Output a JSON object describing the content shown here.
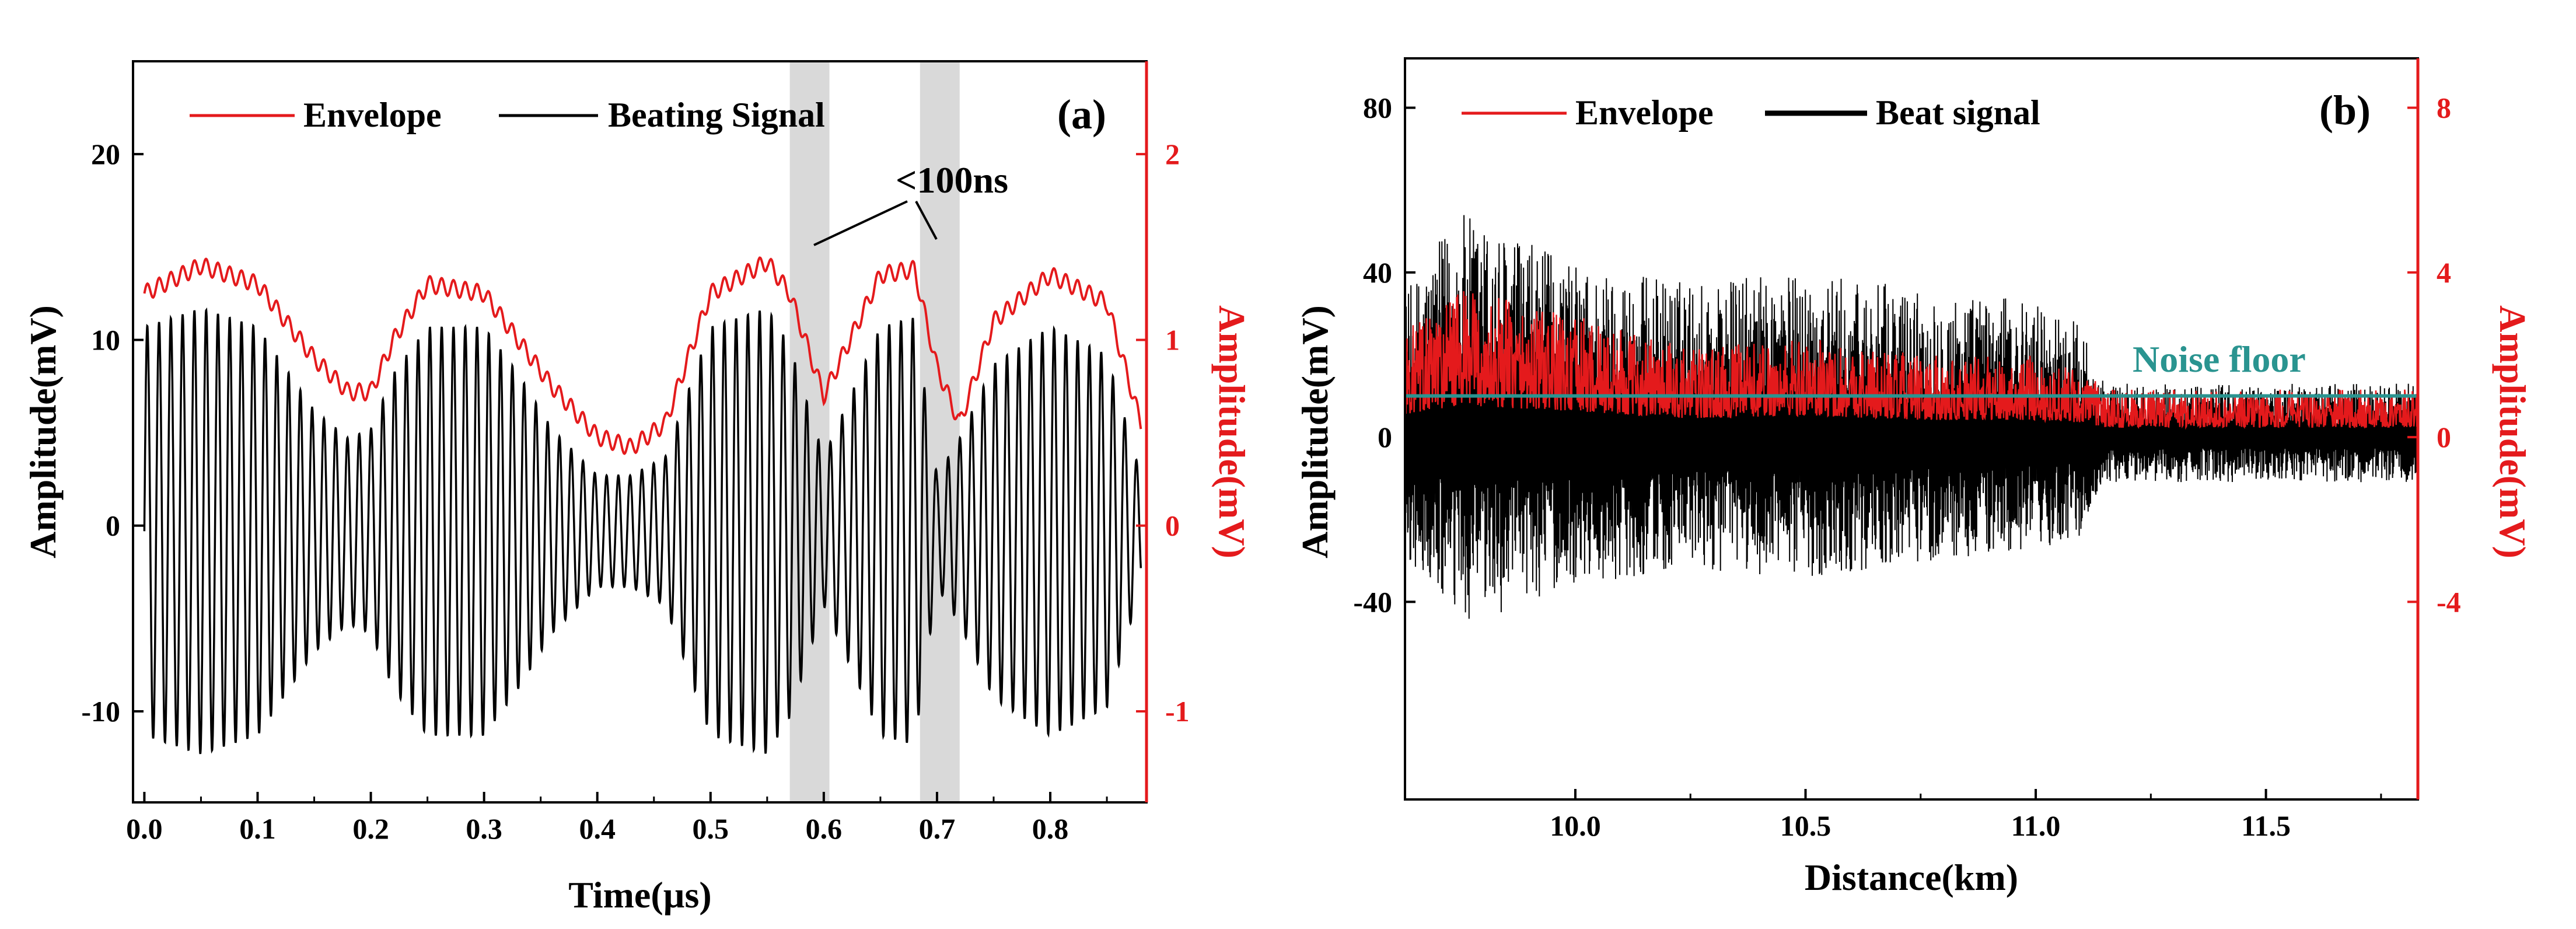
{
  "figure": {
    "panels": [
      "(a)",
      "(b)"
    ]
  },
  "chart_data": [
    {
      "type": "line",
      "panel_label": "(a)",
      "title": "",
      "xlabel": "Time(µs)",
      "ylabel_left": "Amplitude(mV)",
      "ylabel_right": "Amplitude(mV)",
      "xlim": [
        -0.01,
        0.885
      ],
      "ylim_left": [
        -14.9,
        25
      ],
      "ylim_right": [
        -1.49,
        2.5
      ],
      "x_ticks": [
        0.0,
        0.1,
        0.2,
        0.3,
        0.4,
        0.5,
        0.6,
        0.7,
        0.8
      ],
      "x_tick_labels": [
        "0.0",
        "0.1",
        "0.2",
        "0.3",
        "0.4",
        "0.5",
        "0.6",
        "0.7",
        "0.8"
      ],
      "y_left_ticks": [
        -10,
        0,
        10,
        20
      ],
      "y_left_tick_labels": [
        "-10",
        "0",
        "10",
        "20"
      ],
      "y_right_ticks": [
        -1,
        0,
        1,
        2
      ],
      "y_right_tick_labels": [
        "-1",
        "0",
        "1",
        "2"
      ],
      "legend": [
        {
          "name": "Envelope",
          "color": "#e41a1c"
        },
        {
          "name": "Beating Signal",
          "color": "#000000"
        }
      ],
      "legend_position": "top-left",
      "series": [
        {
          "name": "Envelope",
          "axis": "right",
          "color": "#e41a1c",
          "x": [
            0.0,
            0.05,
            0.1,
            0.15,
            0.18,
            0.2,
            0.22,
            0.25,
            0.3,
            0.33,
            0.36,
            0.4,
            0.43,
            0.46,
            0.5,
            0.55,
            0.57,
            0.6,
            0.65,
            0.68,
            0.7,
            0.72,
            0.75,
            0.8,
            0.85,
            0.88
          ],
          "values": [
            1.25,
            1.4,
            1.3,
            0.9,
            0.72,
            0.72,
            1.0,
            1.3,
            1.25,
            1.0,
            0.75,
            0.48,
            0.42,
            0.55,
            1.25,
            1.42,
            1.25,
            0.7,
            1.35,
            1.38,
            0.85,
            0.55,
            1.1,
            1.35,
            1.2,
            0.55
          ]
        },
        {
          "name": "Beating Signal",
          "axis": "left",
          "color": "#000000",
          "x": [
            0.0,
            0.05,
            0.1,
            0.15,
            0.18,
            0.2,
            0.22,
            0.25,
            0.3,
            0.33,
            0.36,
            0.4,
            0.43,
            0.46,
            0.5,
            0.55,
            0.57,
            0.6,
            0.65,
            0.68,
            0.7,
            0.72,
            0.75,
            0.8,
            0.85,
            0.88
          ],
          "envelope_values": [
            11,
            12,
            11,
            6.5,
            5,
            5.5,
            8.5,
            11,
            11,
            8.5,
            5.5,
            3,
            3,
            4,
            11,
            12,
            10,
            4,
            11,
            11.5,
            3,
            5,
            9,
            11,
            9.5,
            3
          ]
        }
      ],
      "shaded_regions": [
        {
          "x": [
            0.57,
            0.605
          ]
        },
        {
          "x": [
            0.685,
            0.72
          ]
        }
      ],
      "annotations": [
        {
          "text": "<100ns",
          "x": 0.63,
          "y": 18.1
        }
      ]
    },
    {
      "type": "line",
      "panel_label": "(b)",
      "title": "",
      "xlabel": "Distance(km)",
      "ylabel_left": "Amplitude(mV)",
      "ylabel_right": "Amplitude(mV)",
      "xlim": [
        9.63,
        11.83
      ],
      "ylim_left": [
        -88,
        92
      ],
      "ylim_right": [
        -8.8,
        9.2
      ],
      "x_ticks": [
        10.0,
        10.5,
        11.0,
        11.5
      ],
      "x_tick_labels": [
        "10.0",
        "10.5",
        "11.0",
        "11.5"
      ],
      "y_left_ticks": [
        -40,
        0,
        40,
        80
      ],
      "y_left_tick_labels": [
        "-40",
        "0",
        "40",
        "80"
      ],
      "y_right_ticks": [
        -4,
        0,
        4,
        8
      ],
      "y_right_tick_labels": [
        "-4",
        "0",
        "4",
        "8"
      ],
      "legend": [
        {
          "name": "Envelope",
          "color": "#e41a1c"
        },
        {
          "name": "Beat signal",
          "color": "#000000"
        }
      ],
      "legend_position": "top-left",
      "series": [
        {
          "name": "Envelope",
          "axis": "right",
          "color": "#e41a1c",
          "x": [
            9.63,
            9.75,
            10.0,
            10.25,
            10.5,
            10.75,
            11.0,
            11.1,
            11.15,
            11.5,
            11.83
          ],
          "values": [
            1.6,
            2.2,
            1.8,
            1.3,
            1.5,
            1.2,
            1.2,
            1.0,
            0.7,
            0.7,
            0.7
          ]
        },
        {
          "name": "Beat signal",
          "axis": "left",
          "color": "#000000",
          "x": [
            9.63,
            9.75,
            10.0,
            10.25,
            10.5,
            10.75,
            11.0,
            11.1,
            11.15,
            11.5,
            11.83
          ],
          "envelope_values": [
            35,
            55,
            42,
            38,
            40,
            36,
            33,
            28,
            13,
            13,
            13
          ]
        }
      ],
      "reference_lines": [
        {
          "name": "Noise floor",
          "y": 10,
          "color": "#2a9490",
          "x": [
            9.63,
            11.83
          ]
        }
      ]
    }
  ]
}
